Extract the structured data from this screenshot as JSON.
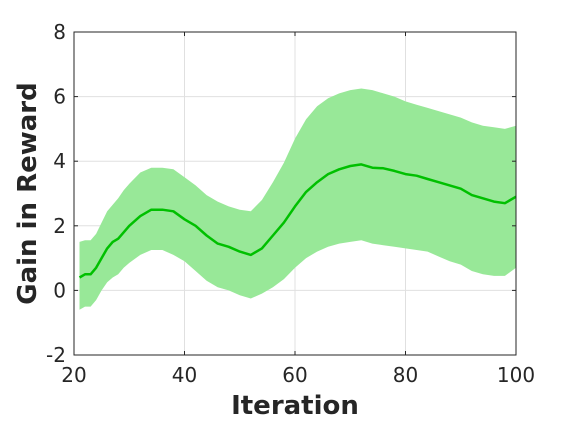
{
  "chart_data": {
    "type": "line",
    "title": "",
    "xlabel": "Iteration",
    "ylabel": "Gain in Reward",
    "xlim": [
      20,
      100
    ],
    "ylim": [
      -2,
      8
    ],
    "xticks": [
      20,
      40,
      60,
      80,
      100
    ],
    "yticks": [
      -2,
      0,
      2,
      4,
      6,
      8
    ],
    "xtick_labels": [
      "20",
      "40",
      "60",
      "80",
      "100"
    ],
    "ytick_labels": [
      "-2",
      "0",
      "2",
      "4",
      "6",
      "8"
    ],
    "grid": true,
    "legend": "none",
    "colors": {
      "line": "#00c000",
      "band": "#98e898",
      "axis": "#262626",
      "grid": "#e0e0e0"
    },
    "series": [
      {
        "x": [
          21,
          22,
          23,
          24,
          25,
          26,
          27,
          28,
          29,
          30,
          32,
          34,
          36,
          38,
          40,
          42,
          44,
          46,
          48,
          50,
          52,
          54,
          56,
          58,
          60,
          62,
          64,
          66,
          68,
          70,
          72,
          74,
          76,
          78,
          80,
          82,
          84,
          86,
          88,
          90,
          92,
          94,
          96,
          98,
          100
        ],
        "y": [
          0.4,
          0.5,
          0.5,
          0.7,
          1.0,
          1.3,
          1.5,
          1.6,
          1.8,
          2.0,
          2.3,
          2.5,
          2.5,
          2.45,
          2.2,
          2.0,
          1.7,
          1.45,
          1.35,
          1.2,
          1.1,
          1.3,
          1.7,
          2.1,
          2.6,
          3.05,
          3.35,
          3.6,
          3.75,
          3.85,
          3.9,
          3.8,
          3.78,
          3.7,
          3.6,
          3.55,
          3.45,
          3.35,
          3.25,
          3.15,
          2.95,
          2.85,
          2.75,
          2.7,
          2.9
        ],
        "lower": [
          -0.6,
          -0.5,
          -0.5,
          -0.3,
          0.0,
          0.25,
          0.4,
          0.5,
          0.7,
          0.85,
          1.1,
          1.25,
          1.25,
          1.1,
          0.9,
          0.6,
          0.3,
          0.1,
          0.0,
          -0.15,
          -0.25,
          -0.1,
          0.1,
          0.35,
          0.7,
          1.0,
          1.2,
          1.35,
          1.45,
          1.5,
          1.55,
          1.45,
          1.4,
          1.35,
          1.3,
          1.25,
          1.2,
          1.05,
          0.9,
          0.8,
          0.6,
          0.5,
          0.45,
          0.45,
          0.7
        ],
        "upper": [
          1.5,
          1.55,
          1.55,
          1.75,
          2.1,
          2.45,
          2.65,
          2.85,
          3.1,
          3.3,
          3.65,
          3.8,
          3.8,
          3.75,
          3.5,
          3.25,
          2.95,
          2.75,
          2.6,
          2.5,
          2.45,
          2.8,
          3.35,
          3.95,
          4.7,
          5.3,
          5.7,
          5.95,
          6.1,
          6.2,
          6.25,
          6.2,
          6.1,
          6.0,
          5.85,
          5.75,
          5.65,
          5.55,
          5.45,
          5.35,
          5.2,
          5.1,
          5.05,
          5.0,
          5.1
        ]
      }
    ]
  }
}
